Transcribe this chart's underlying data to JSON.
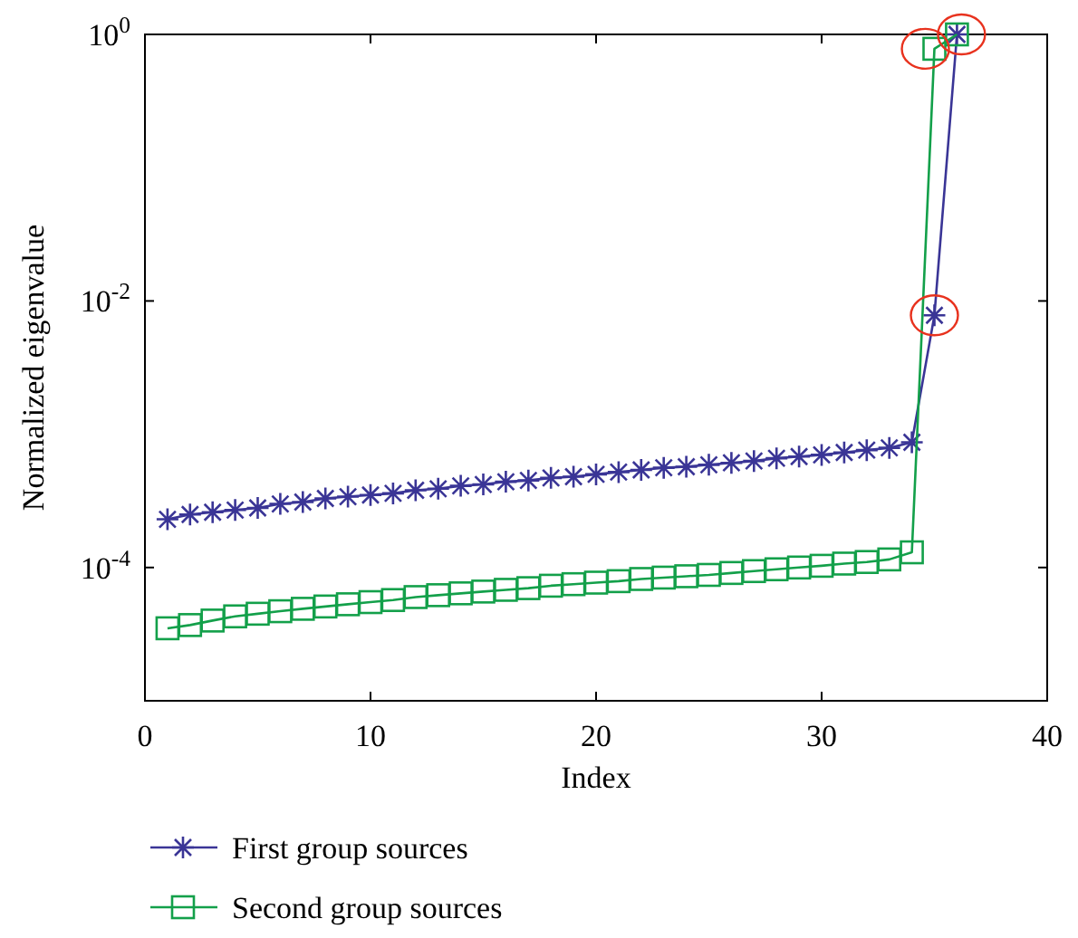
{
  "chart_data": {
    "type": "line",
    "xlabel": "Index",
    "ylabel": "Normalized eigenvalue",
    "log": "y",
    "xlim": [
      0,
      40
    ],
    "xticks": [
      0,
      10,
      20,
      30,
      40
    ],
    "ylim": [
      1e-05,
      1
    ],
    "yticks": [
      {
        "value": 1,
        "label": "10$^{0}$"
      },
      {
        "value": 0.01,
        "label": "10$^{-2}$"
      },
      {
        "value": 0.0001,
        "label": "10$^{-4}$"
      }
    ],
    "grid": false,
    "legend": "bottom",
    "line_style": "solid",
    "x": [
      1,
      2,
      3,
      4,
      5,
      6,
      7,
      8,
      9,
      10,
      11,
      12,
      13,
      14,
      15,
      16,
      17,
      18,
      19,
      20,
      21,
      22,
      23,
      24,
      25,
      26,
      27,
      28,
      29,
      30,
      31,
      32,
      33,
      34,
      35,
      36
    ],
    "series": [
      {
        "name": "First group sources",
        "color": "#3a3596",
        "marker": "cross",
        "values": [
          0.00023,
          0.00025,
          0.00026,
          0.00027,
          0.00028,
          0.0003,
          0.00031,
          0.00033,
          0.00034,
          0.00035,
          0.00036,
          0.00038,
          0.00039,
          0.00041,
          0.00042,
          0.00044,
          0.00045,
          0.00047,
          0.00048,
          0.0005,
          0.00052,
          0.00054,
          0.00056,
          0.00057,
          0.00059,
          0.00061,
          0.00063,
          0.00066,
          0.00068,
          0.0007,
          0.00073,
          0.00076,
          0.00079,
          0.00087,
          0.0078,
          1
        ]
      },
      {
        "name": "Second group sources",
        "color": "#13a04a",
        "marker": "square",
        "values": [
          3.5e-05,
          3.7e-05,
          4e-05,
          4.3e-05,
          4.5e-05,
          4.7e-05,
          4.9e-05,
          5.1e-05,
          5.3e-05,
          5.5e-05,
          5.7e-05,
          6e-05,
          6.2e-05,
          6.4e-05,
          6.6e-05,
          6.8e-05,
          7e-05,
          7.3e-05,
          7.5e-05,
          7.7e-05,
          7.9e-05,
          8.2e-05,
          8.4e-05,
          8.6e-05,
          8.8e-05,
          9.1e-05,
          9.4e-05,
          9.7e-05,
          0.0001,
          0.000103,
          0.000107,
          0.00011,
          0.000115,
          0.00013,
          0.78,
          1
        ]
      }
    ]
  }
}
